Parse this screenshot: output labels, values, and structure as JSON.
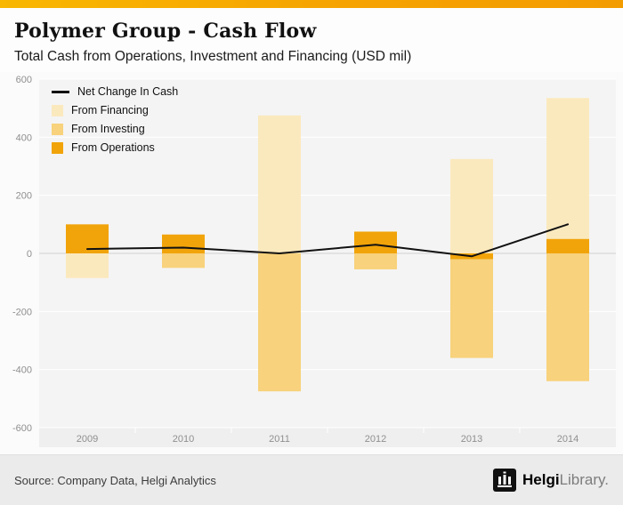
{
  "accent": {
    "top_bar_color": "#F6A300"
  },
  "header": {
    "title": "Polymer Group - Cash Flow",
    "subtitle": "Total Cash from Operations, Investment and Financing (USD mil)"
  },
  "legend": {
    "items": [
      {
        "label": "Net Change In Cash",
        "type": "line",
        "color": "#111111"
      },
      {
        "label": "From Financing",
        "type": "swatch",
        "color": "#FBE9BE"
      },
      {
        "label": "From Investing",
        "type": "swatch",
        "color": "#F8D27C"
      },
      {
        "label": "From Operations",
        "type": "swatch",
        "color": "#F1A40A"
      }
    ]
  },
  "chart_data": {
    "type": "bar",
    "stacked": true,
    "title": "Polymer Group - Cash Flow",
    "subtitle": "Total Cash from Operations, Investment and Financing (USD mil)",
    "categories": [
      "2009",
      "2010",
      "2011",
      "2012",
      "2013",
      "2014"
    ],
    "series": [
      {
        "name": "From Operations",
        "color": "#F1A40A",
        "values": [
          100,
          65,
          0,
          75,
          -20,
          50
        ]
      },
      {
        "name": "From Investing",
        "color": "#F8D27C",
        "values": [
          0,
          -50,
          -475,
          -55,
          -340,
          -440
        ]
      },
      {
        "name": "From Financing",
        "color": "#FBE9BE",
        "values": [
          -85,
          0,
          475,
          0,
          325,
          485
        ]
      }
    ],
    "line_series": {
      "name": "Net Change In Cash",
      "color": "#111111",
      "values": [
        15,
        20,
        0,
        30,
        -10,
        100
      ]
    },
    "ylim": [
      -600,
      600
    ],
    "yticks": [
      600,
      400,
      200,
      0,
      -200,
      -400,
      -600
    ],
    "grid": true,
    "plot_bg": "#F4F4F4",
    "axis_band_bg": "#EFEFEF",
    "gridline_color": "#FFFFFF",
    "zeroline_color": "#CFCFCF",
    "legend_position": "top-left",
    "xlabel": "",
    "ylabel": ""
  },
  "footer": {
    "source": "Source: Company Data, Helgi Analytics",
    "logo_bold": "Helgi",
    "logo_light": "Library."
  }
}
